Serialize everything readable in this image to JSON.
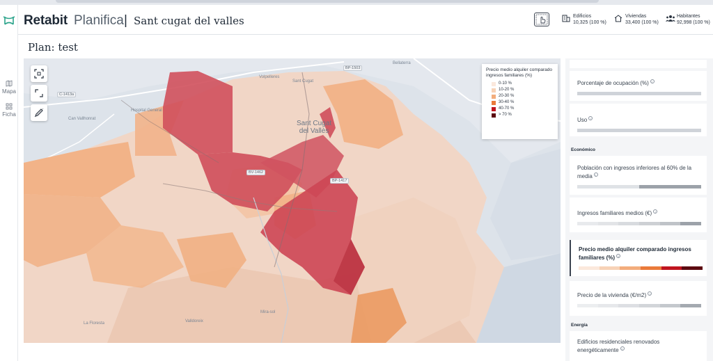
{
  "header": {
    "brand": "Retabit",
    "product": "Planifica",
    "separator": "|",
    "city": "Sant cugat del valles",
    "stats": [
      {
        "label": "Edificios",
        "value": "10,325 (100 %)",
        "icon": "building-icon"
      },
      {
        "label": "Viviendas",
        "value": "33,400 (100 %)",
        "icon": "house-icon"
      },
      {
        "label": "Habitantes",
        "value": "92,998 (100 %)",
        "icon": "people-icon"
      }
    ]
  },
  "rail": {
    "items": [
      {
        "label": "Mapa",
        "icon": "map-icon"
      },
      {
        "label": "Ficha",
        "icon": "grid-icon"
      }
    ]
  },
  "plan": {
    "title": "Plan: test"
  },
  "map": {
    "labels": {
      "city_line1": "Sant Cugat",
      "city_line2": "del Vallès",
      "road_c1413a": "C-1413a",
      "road_bp1503": "BP-1503",
      "road_bp1417": "BP-1417",
      "road_bv1462": "BV-1462",
      "valldoreix": "Valldoreix",
      "hospital": "Hospital General",
      "can_vallhonrat": "Can Vallhonrat",
      "sant_cugat_nord": "Sant Cugat",
      "volpelleres": "Volpelleres",
      "bellaterra": "Bellaterra",
      "la_floresta": "La Floresta",
      "mira_sol": "Mira-sol"
    },
    "legend": {
      "title": "Precio medio alquiler comparado ingresos familiares (%)",
      "items": [
        {
          "label": "0-10 %",
          "color": "#fbe8dc"
        },
        {
          "label": "10-20 %",
          "color": "#f7d2b6"
        },
        {
          "label": "20-30 %",
          "color": "#f3ad7c"
        },
        {
          "label": "30-40 %",
          "color": "#ea7a3a"
        },
        {
          "label": "40-70 %",
          "color": "#c0141f"
        },
        {
          "label": "> 70 %",
          "color": "#5c0a10"
        }
      ]
    }
  },
  "panel": {
    "cards": [
      {
        "label": "Porcentaje de ocupación (%)"
      },
      {
        "label": "Uso"
      }
    ],
    "section_economico": "Económico",
    "economico_cards": [
      {
        "label_line1": "Población con ingresos inferiores al 60% de la",
        "label_line2": "media"
      },
      {
        "label": "Ingresos familiares medios (€)"
      },
      {
        "label_line1": "Precio medio alquiler comparado ingresos",
        "label_line2": "familiares (%)"
      },
      {
        "label": "Precio de la vivienda (€/m2)"
      }
    ],
    "section_energia": "Energía",
    "energia_cards": [
      {
        "label_line1": "Edificios residenciales renovados",
        "label_line2": "energéticamente"
      }
    ],
    "colors": {
      "accent": "#3b4350",
      "scale_dark": "#5c0a10"
    }
  }
}
